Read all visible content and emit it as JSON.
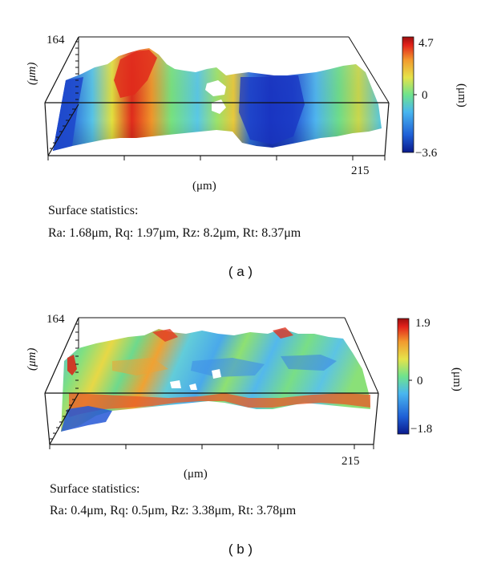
{
  "figure": {
    "panels": [
      {
        "id": "a",
        "caption": "( a )",
        "y_axis_label": "(μm)",
        "y_axis_max": "164",
        "x_axis_label": "(μm)",
        "x_axis_max": "215",
        "colorbar": {
          "max": "4.7",
          "zero": "0",
          "min": "−3.6",
          "unit": "(μm)"
        },
        "stats_title": "Surface statistics:",
        "stats_values": "Ra: 1.68μm, Rq: 1.97μm, Rz: 8.2μm, Rt: 8.37μm"
      },
      {
        "id": "b",
        "caption": "( b )",
        "y_axis_label": "(μm)",
        "y_axis_max": "164",
        "x_axis_label": "(μm)",
        "x_axis_max": "215",
        "colorbar": {
          "max": "1.9",
          "zero": "0",
          "min": "−1.8",
          "unit": "(μm)"
        },
        "stats_title": "Surface statistics:",
        "stats_values": "Ra: 0.4μm, Rq: 0.5μm, Rz: 3.38μm, Rt: 3.78μm"
      }
    ]
  },
  "colors": {
    "colormap": [
      "#0a1a8c",
      "#1f5fd6",
      "#49b6ef",
      "#6fe38d",
      "#e6e34a",
      "#f29a2e",
      "#e2221b",
      "#9c0e0e"
    ],
    "frame": "#111111"
  }
}
